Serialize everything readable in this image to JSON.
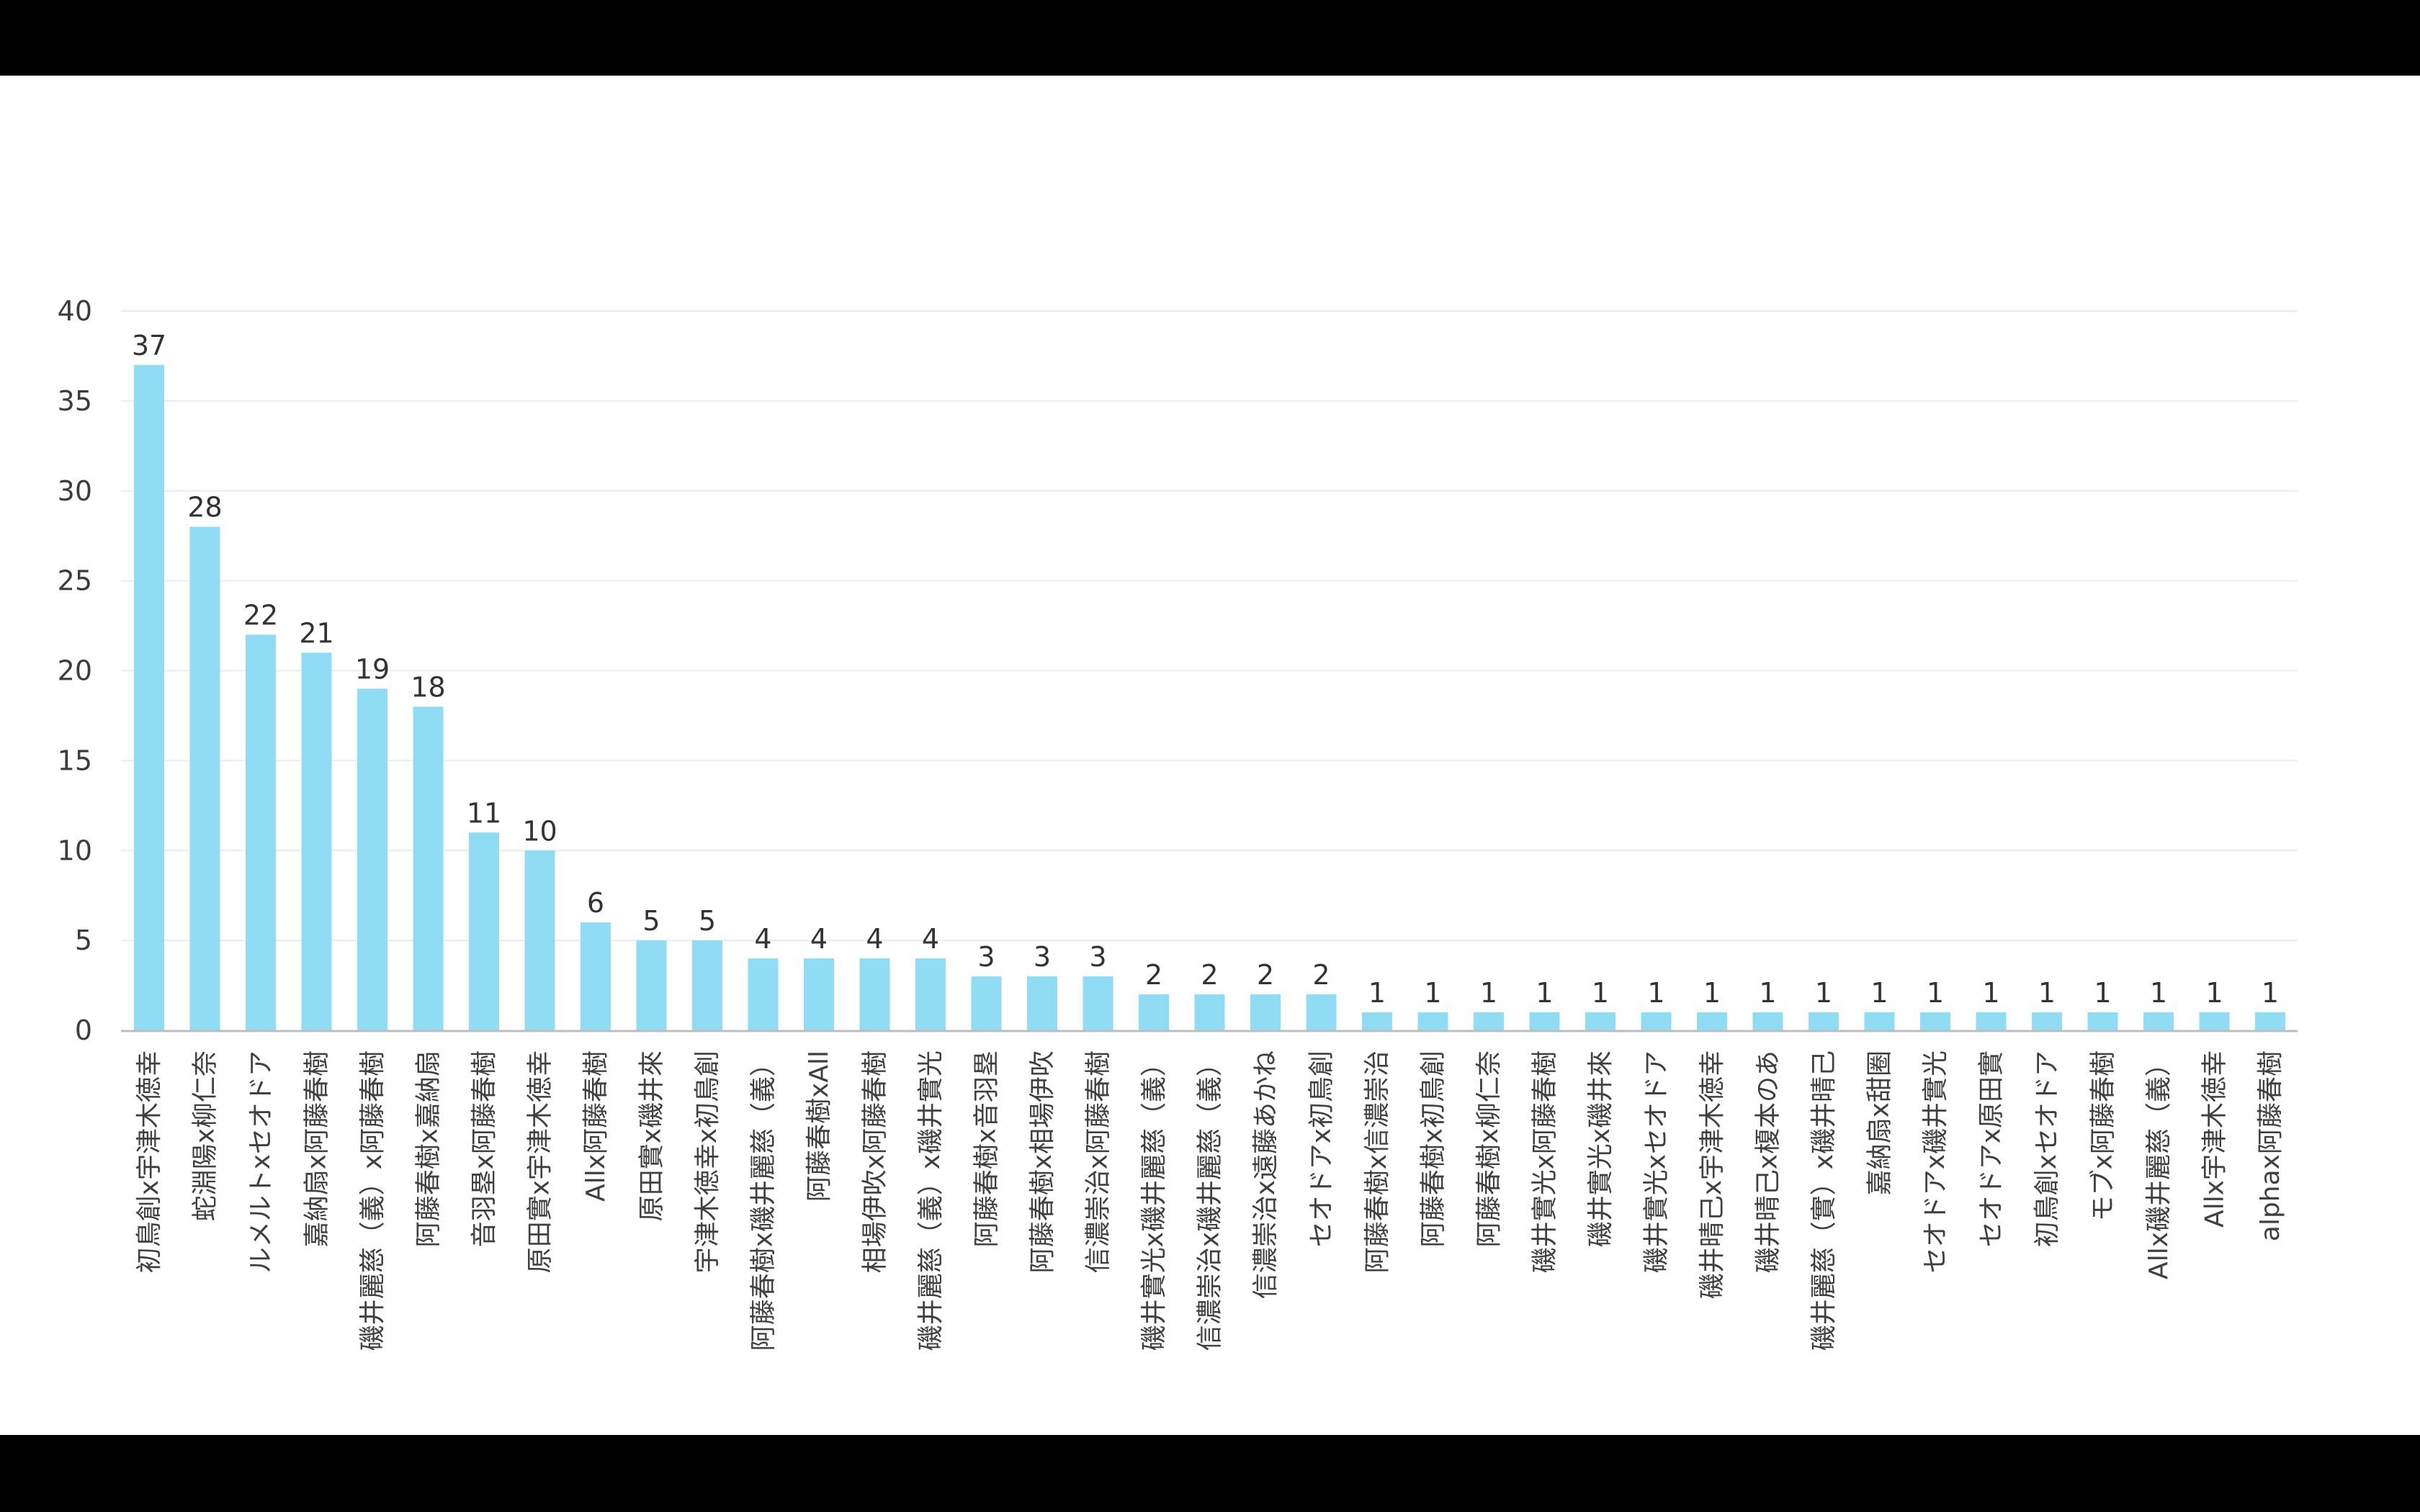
{
  "chart_data": {
    "type": "bar",
    "bar_color": "#90dcf4",
    "grid": true,
    "ylim": [
      0,
      40
    ],
    "yticks": [
      0,
      5,
      10,
      15,
      20,
      25,
      30,
      35,
      40
    ],
    "categories": [
      "初鳥創x宇津木徳幸",
      "蛇淵陽x柳仁奈",
      "ルメルトxセオドア",
      "嘉納扇x阿藤春樹",
      "磯井麗慈（義）x阿藤春樹",
      "阿藤春樹x嘉納扇",
      "音羽塁x阿藤春樹",
      "原田實x宇津木徳幸",
      "Allx阿藤春樹",
      "原田實x磯井來",
      "宇津木徳幸x初鳥創",
      "阿藤春樹x磯井麗慈（義）",
      "阿藤春樹xAll",
      "相場伊吹x阿藤春樹",
      "磯井麗慈（義）x磯井實光",
      "阿藤春樹x音羽塁",
      "阿藤春樹x相場伊吹",
      "信濃崇治x阿藤春樹",
      "磯井實光x磯井麗慈（義）",
      "信濃崇治x磯井麗慈（義）",
      "信濃崇治x遠藤あかね",
      "セオドアx初鳥創",
      "阿藤春樹x信濃崇治",
      "阿藤春樹x初鳥創",
      "阿藤春樹x柳仁奈",
      "磯井實光x阿藤春樹",
      "磯井實光x磯井來",
      "磯井實光xセオドア",
      "磯井晴己x宇津木徳幸",
      "磯井晴己x榎本のあ",
      "磯井麗慈（實）x磯井晴己",
      "嘉納扇x甜圈",
      "セオドアx磯井實光",
      "セオドアx原田實",
      "初鳥創xセオドア",
      "モブx阿藤春樹",
      "Allx磯井麗慈（義）",
      "Allx宇津木徳幸",
      "alphax阿藤春樹"
    ],
    "values": [
      37,
      28,
      22,
      21,
      19,
      18,
      11,
      10,
      6,
      5,
      5,
      4,
      4,
      4,
      4,
      3,
      3,
      3,
      2,
      2,
      2,
      2,
      1,
      1,
      1,
      1,
      1,
      1,
      1,
      1,
      1,
      1,
      1,
      1,
      1,
      1,
      1,
      1,
      1
    ],
    "data_labels": true
  }
}
